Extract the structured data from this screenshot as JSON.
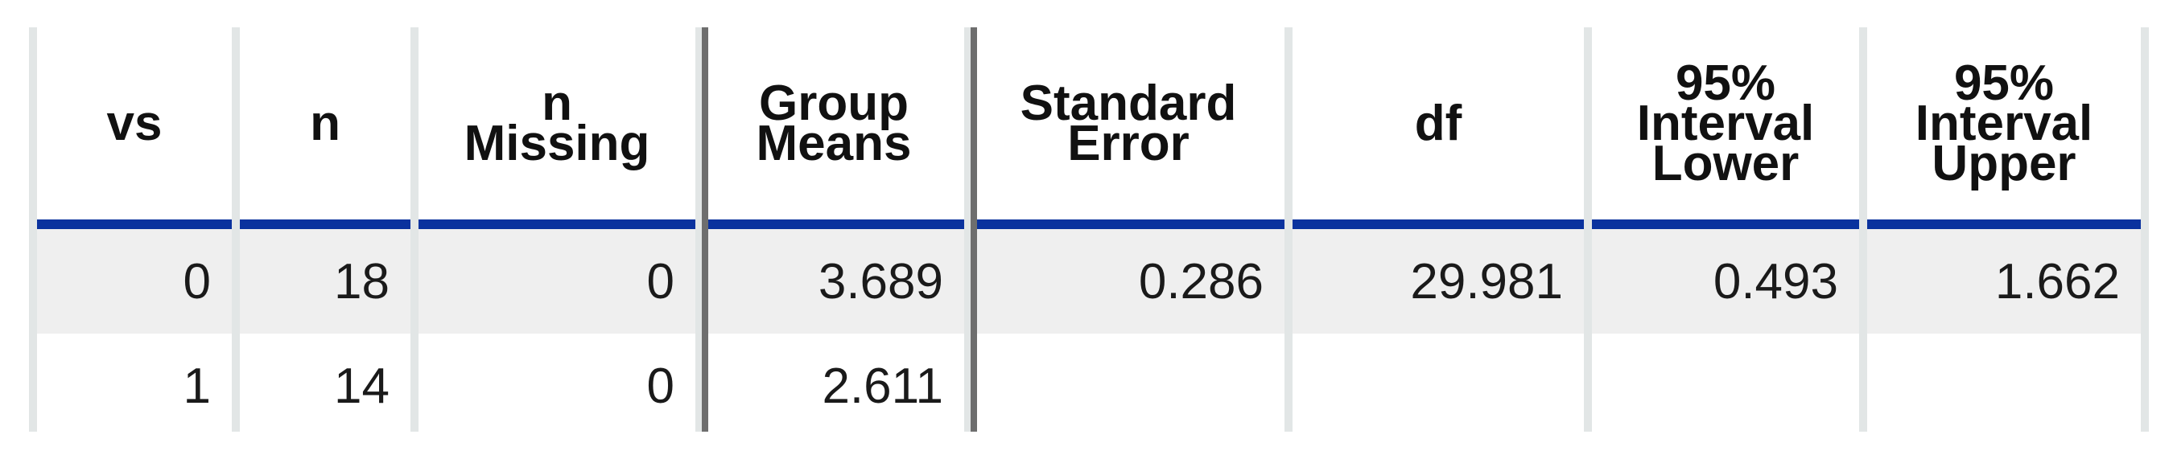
{
  "table": {
    "headers": [
      "vs",
      "n",
      "n\nMissing",
      "Group\nMeans",
      "Standard\nError",
      "df",
      "95%\nInterval\nLower",
      "95%\nInterval\nUpper"
    ],
    "rows": [
      [
        "0",
        "18",
        "0",
        "3.689",
        "0.286",
        "29.981",
        "0.493",
        "1.662"
      ],
      [
        "1",
        "14",
        "0",
        "2.611",
        "",
        "",
        "",
        ""
      ]
    ]
  },
  "colors": {
    "header_rule": "#0a329e",
    "separator": "#6e6e6e",
    "frame": "#e2e6e6",
    "stripe": "#efefef"
  }
}
